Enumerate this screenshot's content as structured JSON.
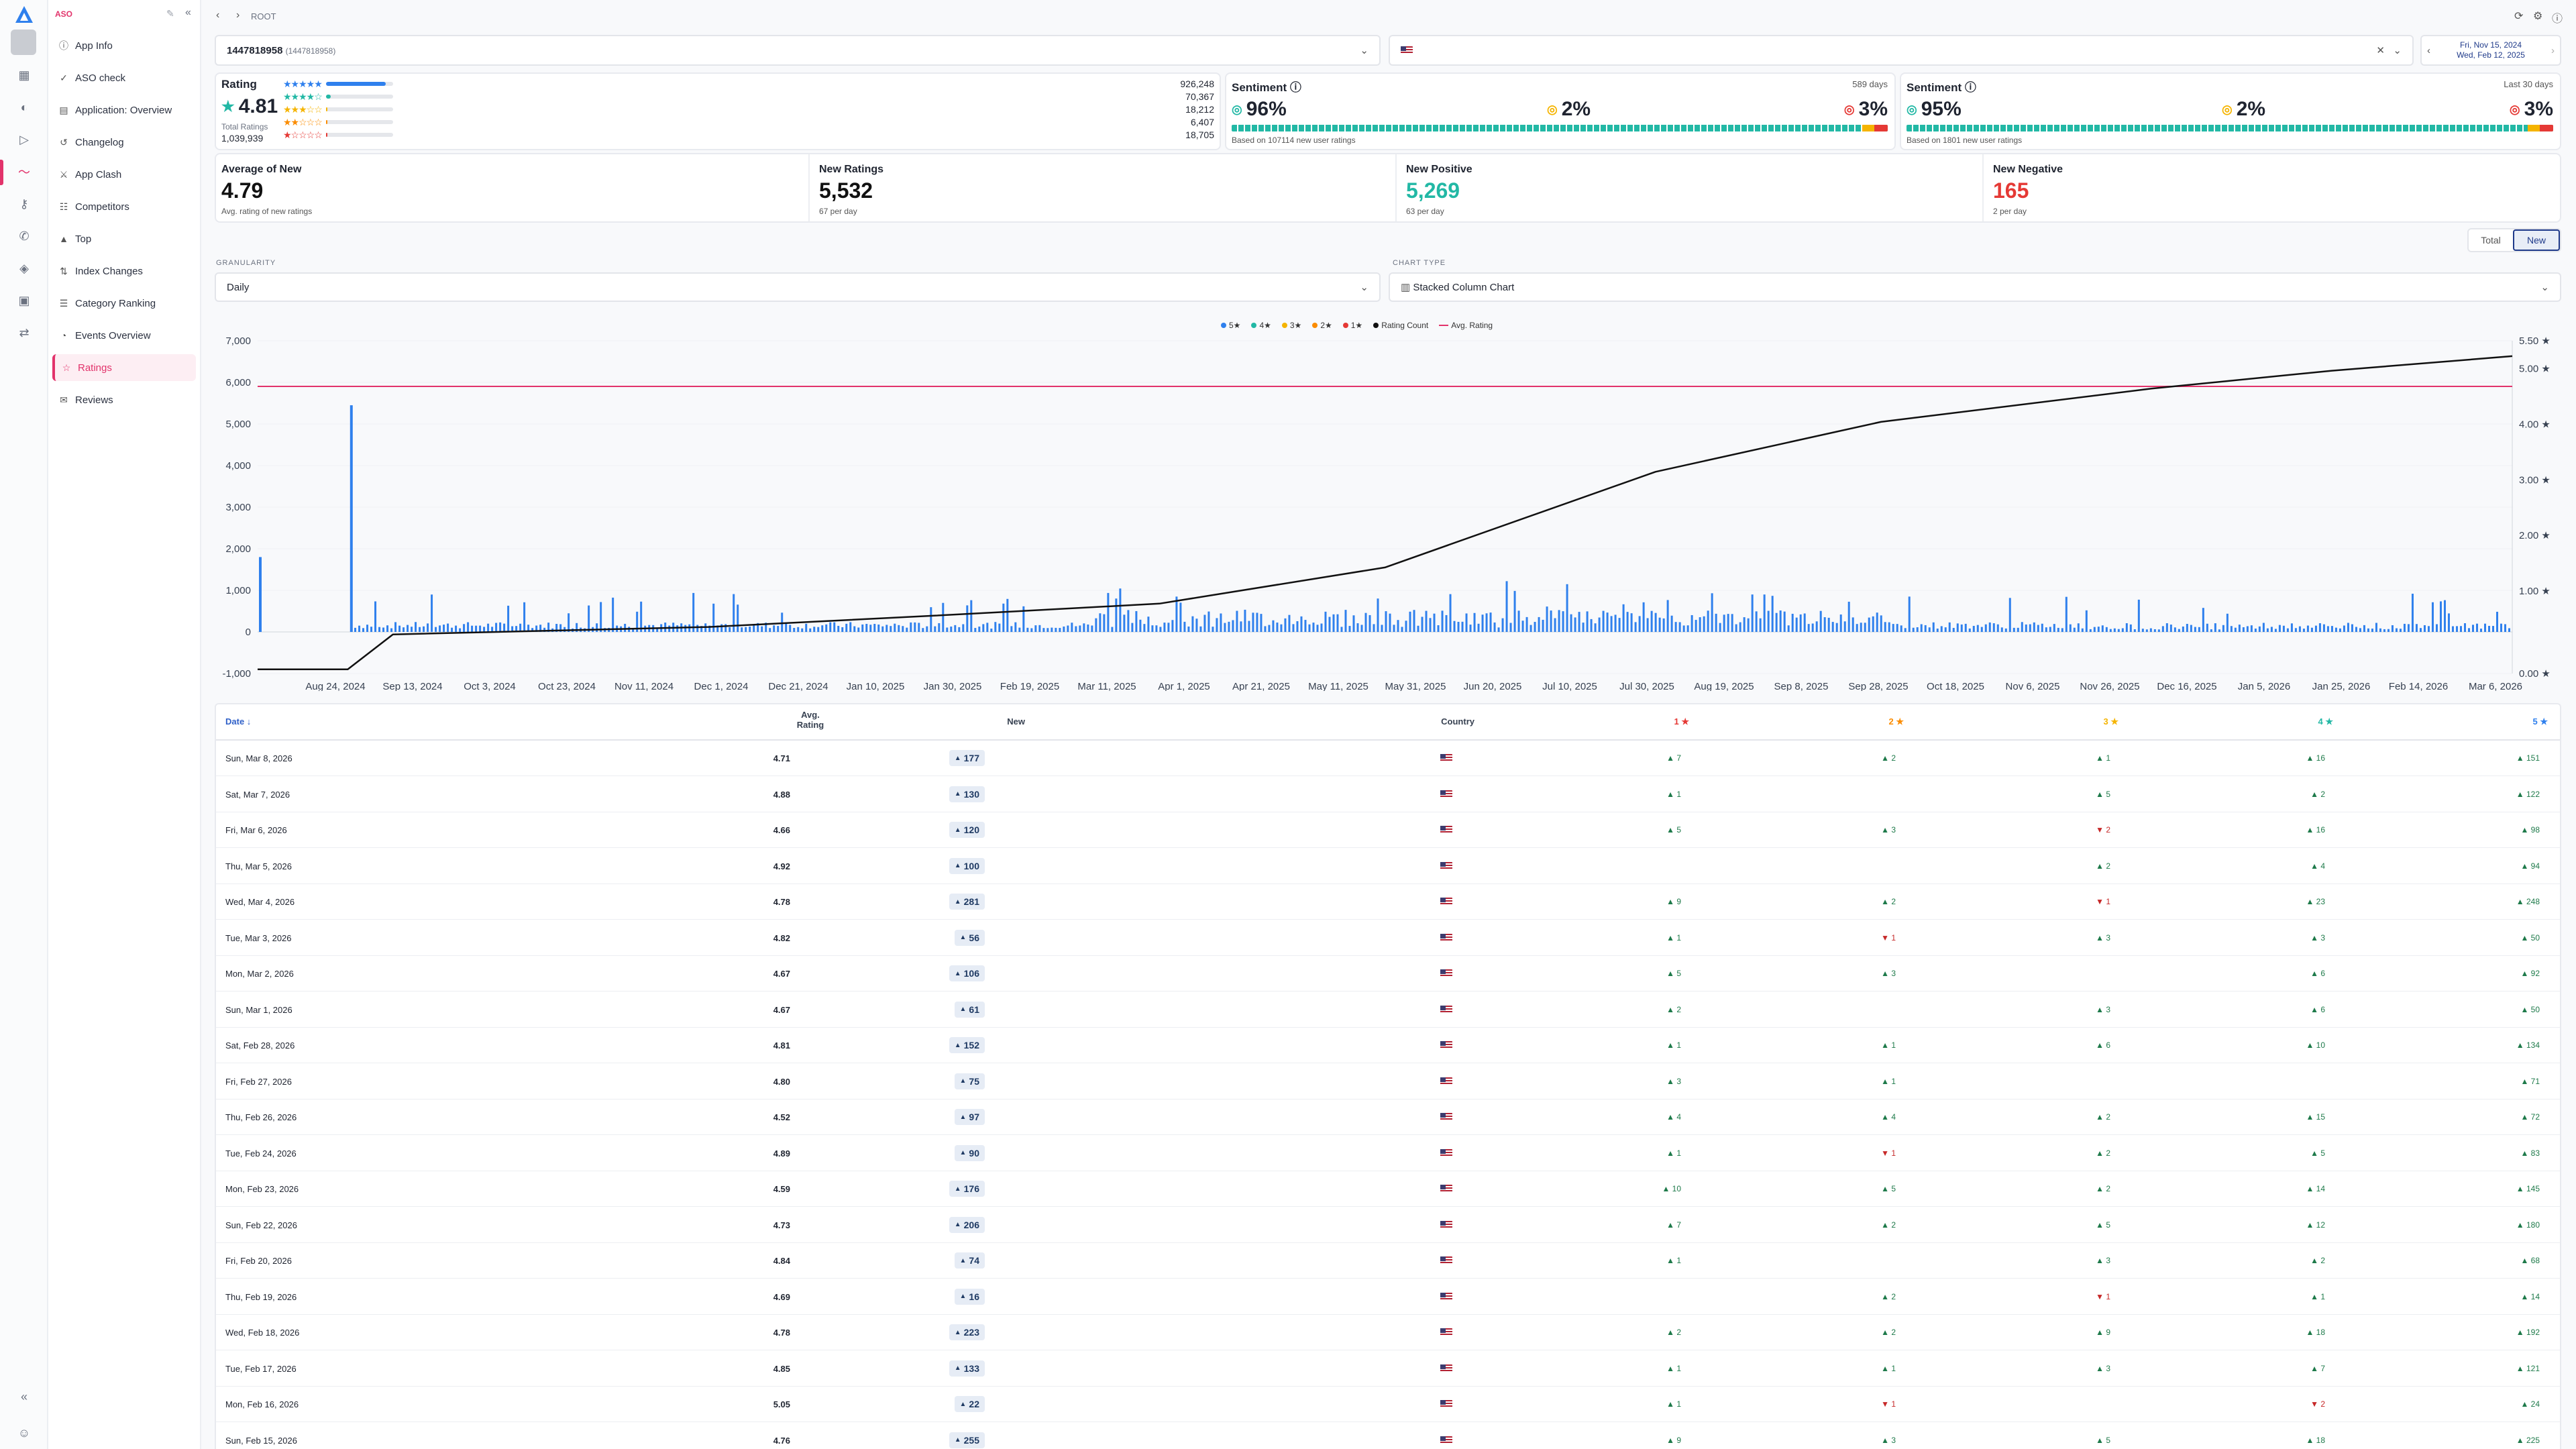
{
  "app": {
    "brand": "ASO",
    "breadcrumb": "ROOT"
  },
  "sidebar": {
    "items": [
      {
        "label": "App Info",
        "icon": "info-icon"
      },
      {
        "label": "ASO check",
        "icon": "check-icon"
      },
      {
        "label": "Application: Overview",
        "icon": "overview-icon"
      },
      {
        "label": "Changelog",
        "icon": "changelog-icon"
      },
      {
        "label": "App Clash",
        "icon": "clash-icon"
      },
      {
        "label": "Competitors",
        "icon": "competitors-icon"
      },
      {
        "label": "Top",
        "icon": "top-icon"
      },
      {
        "label": "Index Changes",
        "icon": "index-icon"
      },
      {
        "label": "Category Ranking",
        "icon": "category-icon"
      },
      {
        "label": "Events Overview",
        "icon": "events-icon"
      },
      {
        "label": "Ratings",
        "icon": "star-icon",
        "active": true
      },
      {
        "label": "Reviews",
        "icon": "reviews-icon"
      }
    ]
  },
  "app_select": {
    "id": "1447818958",
    "sub": "(1447818958)"
  },
  "date_range": {
    "from": "Fri, Nov 15, 2024",
    "to": "Wed, Feb 12, 2025"
  },
  "rating_card": {
    "title": "Rating",
    "value": "4.81",
    "total_label": "Total Ratings",
    "total": "1,039,939",
    "counts": [
      "926,248",
      "70,367",
      "18,212",
      "6,407",
      "18,705"
    ],
    "fills": [
      0.89,
      0.068,
      0.018,
      0.006,
      0.018
    ]
  },
  "sentiment_all": {
    "title": "Sentiment",
    "period": "589 days",
    "positive": "96%",
    "neutral": "2%",
    "negative": "3%",
    "note": "Based on 107114 new user ratings"
  },
  "sentiment_30": {
    "title": "Sentiment",
    "period": "Last 30 days",
    "positive": "95%",
    "neutral": "2%",
    "negative": "3%",
    "note": "Based on 1801 new user ratings"
  },
  "stats": [
    {
      "label": "Average of New",
      "value": "4.79",
      "sub": "Avg. rating of new ratings",
      "color": "#111111"
    },
    {
      "label": "New Ratings",
      "value": "5,532",
      "sub": "67 per day",
      "color": "#111111"
    },
    {
      "label": "New Positive",
      "value": "5,269",
      "sub": "63 per day",
      "color": "#22b8a5"
    },
    {
      "label": "New Negative",
      "value": "165",
      "sub": "2 per day",
      "color": "#e53935"
    }
  ],
  "toggle": {
    "total": "Total",
    "new": "New"
  },
  "granularity": {
    "label": "GRANULARITY",
    "value": "Daily"
  },
  "chart_type": {
    "label": "CHART TYPE",
    "value": "Stacked Column Chart"
  },
  "chart_data": {
    "type": "bar",
    "legend": [
      "5★",
      "4★",
      "3★",
      "2★",
      "1★",
      "Rating Count",
      "Avg. Rating"
    ],
    "colors": {
      "5": "#2f80ed",
      "4": "#22b8a5",
      "3": "#f5b400",
      "2": "#fb8c00",
      "1": "#e53935",
      "count": "#111111",
      "avg": "#e2336b"
    },
    "y_left_ticks": [
      "7,000",
      "6,000",
      "5,000",
      "4,000",
      "3,000",
      "2,000",
      "1,000",
      "0",
      "-1,000"
    ],
    "y_right_ticks": [
      "5.50 ★",
      "5.00 ★",
      "4.00 ★",
      "3.00 ★",
      "2.00 ★",
      "1.00 ★",
      "0.00 ★"
    ],
    "x_ticks": [
      "Aug 24, 2024",
      "Sep 13, 2024",
      "Oct 3, 2024",
      "Oct 23, 2024",
      "Nov 11, 2024",
      "Dec 1, 2024",
      "Dec 21, 2024",
      "Jan 10, 2025",
      "Jan 30, 2025",
      "Feb 19, 2025",
      "Mar 11, 2025",
      "Apr 1, 2025",
      "Apr 21, 2025",
      "May 11, 2025",
      "May 31, 2025",
      "Jun 20, 2025",
      "Jul 10, 2025",
      "Jul 30, 2025",
      "Aug 19, 2025",
      "Sep 8, 2025",
      "Sep 28, 2025",
      "Oct 18, 2025",
      "Nov 6, 2025",
      "Nov 26, 2025",
      "Dec 16, 2025",
      "Jan 5, 2026",
      "Jan 25, 2026",
      "Feb 14, 2026",
      "Mar 6, 2026"
    ],
    "ylim": [
      -1000,
      7000
    ],
    "avg_rating": 4.81,
    "spikes": [
      {
        "x": "Aug 3, 2024",
        "value": 1800
      },
      {
        "x": "Aug 24, 2024",
        "value": 5450
      }
    ],
    "count_curve": [
      [
        0,
        -900
      ],
      [
        0.04,
        -900
      ],
      [
        0.06,
        -60
      ],
      [
        0.2,
        120
      ],
      [
        0.3,
        390
      ],
      [
        0.4,
        680
      ],
      [
        0.5,
        1550
      ],
      [
        0.62,
        3850
      ],
      [
        0.72,
        5050
      ],
      [
        0.84,
        5850
      ],
      [
        0.92,
        6280
      ],
      [
        1.0,
        6630
      ]
    ]
  },
  "table": {
    "headers": {
      "date": "Date ↓",
      "avg": "Avg. Rating",
      "new": "New",
      "country": "Country",
      "s1": "1 ★",
      "s2": "2 ★",
      "s3": "3 ★",
      "s4": "4 ★",
      "s5": "5 ★"
    },
    "rows": [
      {
        "date": "Sun, Mar 8, 2026",
        "avg": "4.71",
        "new": "177",
        "s1": "▲ 7",
        "s2": "▲ 2",
        "s3": "▲ 1",
        "s4": "▲ 16",
        "s5": "▲ 151"
      },
      {
        "date": "Sat, Mar 7, 2026",
        "avg": "4.88",
        "new": "130",
        "s1": "▲ 1",
        "s2": "",
        "s3": "▲ 5",
        "s4": "▲ 2",
        "s5": "▲ 122"
      },
      {
        "date": "Fri, Mar 6, 2026",
        "avg": "4.66",
        "new": "120",
        "s1": "▲ 5",
        "s2": "▲ 3",
        "s3": "▼ 2",
        "s4": "▲ 16",
        "s5": "▲ 98"
      },
      {
        "date": "Thu, Mar 5, 2026",
        "avg": "4.92",
        "new": "100",
        "s1": "",
        "s2": "",
        "s3": "▲ 2",
        "s4": "▲ 4",
        "s5": "▲ 94"
      },
      {
        "date": "Wed, Mar 4, 2026",
        "avg": "4.78",
        "new": "281",
        "s1": "▲ 9",
        "s2": "▲ 2",
        "s3": "▼ 1",
        "s4": "▲ 23",
        "s5": "▲ 248"
      },
      {
        "date": "Tue, Mar 3, 2026",
        "avg": "4.82",
        "new": "56",
        "s1": "▲ 1",
        "s2": "▼ 1",
        "s3": "▲ 3",
        "s4": "▲ 3",
        "s5": "▲ 50"
      },
      {
        "date": "Mon, Mar 2, 2026",
        "avg": "4.67",
        "new": "106",
        "s1": "▲ 5",
        "s2": "▲ 3",
        "s3": "",
        "s4": "▲ 6",
        "s5": "▲ 92"
      },
      {
        "date": "Sun, Mar 1, 2026",
        "avg": "4.67",
        "new": "61",
        "s1": "▲ 2",
        "s2": "",
        "s3": "▲ 3",
        "s4": "▲ 6",
        "s5": "▲ 50"
      },
      {
        "date": "Sat, Feb 28, 2026",
        "avg": "4.81",
        "new": "152",
        "s1": "▲ 1",
        "s2": "▲ 1",
        "s3": "▲ 6",
        "s4": "▲ 10",
        "s5": "▲ 134"
      },
      {
        "date": "Fri, Feb 27, 2026",
        "avg": "4.80",
        "new": "75",
        "s1": "▲ 3",
        "s2": "▲ 1",
        "s3": "",
        "s4": "",
        "s5": "▲ 71"
      },
      {
        "date": "Thu, Feb 26, 2026",
        "avg": "4.52",
        "new": "97",
        "s1": "▲ 4",
        "s2": "▲ 4",
        "s3": "▲ 2",
        "s4": "▲ 15",
        "s5": "▲ 72"
      },
      {
        "date": "Tue, Feb 24, 2026",
        "avg": "4.89",
        "new": "90",
        "s1": "▲ 1",
        "s2": "▼ 1",
        "s3": "▲ 2",
        "s4": "▲ 5",
        "s5": "▲ 83"
      },
      {
        "date": "Mon, Feb 23, 2026",
        "avg": "4.59",
        "new": "176",
        "s1": "▲ 10",
        "s2": "▲ 5",
        "s3": "▲ 2",
        "s4": "▲ 14",
        "s5": "▲ 145"
      },
      {
        "date": "Sun, Feb 22, 2026",
        "avg": "4.73",
        "new": "206",
        "s1": "▲ 7",
        "s2": "▲ 2",
        "s3": "▲ 5",
        "s4": "▲ 12",
        "s5": "▲ 180"
      },
      {
        "date": "Fri, Feb 20, 2026",
        "avg": "4.84",
        "new": "74",
        "s1": "▲ 1",
        "s2": "",
        "s3": "▲ 3",
        "s4": "▲ 2",
        "s5": "▲ 68"
      },
      {
        "date": "Thu, Feb 19, 2026",
        "avg": "4.69",
        "new": "16",
        "s1": "",
        "s2": "▲ 2",
        "s3": "▼ 1",
        "s4": "▲ 1",
        "s5": "▲ 14"
      },
      {
        "date": "Wed, Feb 18, 2026",
        "avg": "4.78",
        "new": "223",
        "s1": "▲ 2",
        "s2": "▲ 2",
        "s3": "▲ 9",
        "s4": "▲ 18",
        "s5": "▲ 192"
      },
      {
        "date": "Tue, Feb 17, 2026",
        "avg": "4.85",
        "new": "133",
        "s1": "▲ 1",
        "s2": "▲ 1",
        "s3": "▲ 3",
        "s4": "▲ 7",
        "s5": "▲ 121"
      },
      {
        "date": "Mon, Feb 16, 2026",
        "avg": "5.05",
        "new": "22",
        "s1": "▲ 1",
        "s2": "▼ 1",
        "s3": "",
        "s4": "▼ 2",
        "s5": "▲ 24"
      },
      {
        "date": "Sun, Feb 15, 2026",
        "avg": "4.76",
        "new": "255",
        "s1": "▲ 9",
        "s2": "▲ 3",
        "s3": "▲ 5",
        "s4": "▲ 18",
        "s5": "▲ 225"
      }
    ]
  }
}
